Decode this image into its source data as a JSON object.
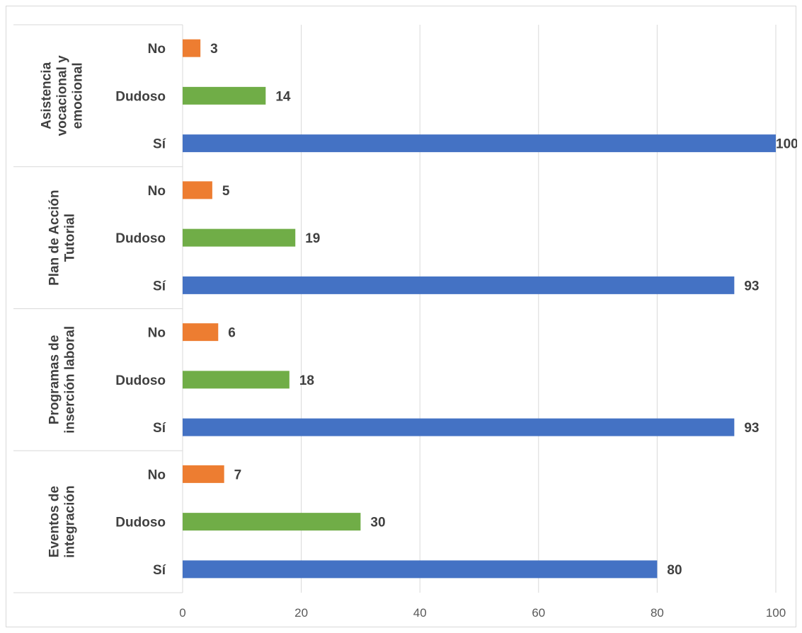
{
  "chart_data": {
    "type": "bar",
    "orientation": "horizontal",
    "title": "",
    "xlabel": "",
    "ylabel": "",
    "xlim": [
      0,
      100
    ],
    "x_ticks": [
      0,
      20,
      40,
      60,
      80,
      100
    ],
    "grid": true,
    "legend": "none",
    "colors": {
      "No": "#ed7d31",
      "Dudoso": "#70ad47",
      "Sí": "#4472c4"
    },
    "groups": [
      {
        "label_lines": [
          "Asistencia",
          "vocacional y",
          "emocional"
        ],
        "bars": [
          {
            "category": "No",
            "value": 3
          },
          {
            "category": "Dudoso",
            "value": 14
          },
          {
            "category": "Sí",
            "value": 100
          }
        ]
      },
      {
        "label_lines": [
          "Plan de Acción",
          "Tutorial"
        ],
        "bars": [
          {
            "category": "No",
            "value": 5
          },
          {
            "category": "Dudoso",
            "value": 19
          },
          {
            "category": "Sí",
            "value": 93
          }
        ]
      },
      {
        "label_lines": [
          "Programas de",
          "inserción laboral"
        ],
        "bars": [
          {
            "category": "No",
            "value": 6
          },
          {
            "category": "Dudoso",
            "value": 18
          },
          {
            "category": "Sí",
            "value": 93
          }
        ]
      },
      {
        "label_lines": [
          "Eventos de",
          "integración"
        ],
        "bars": [
          {
            "category": "No",
            "value": 7
          },
          {
            "category": "Dudoso",
            "value": 30
          },
          {
            "category": "Sí",
            "value": 80
          }
        ]
      }
    ]
  }
}
